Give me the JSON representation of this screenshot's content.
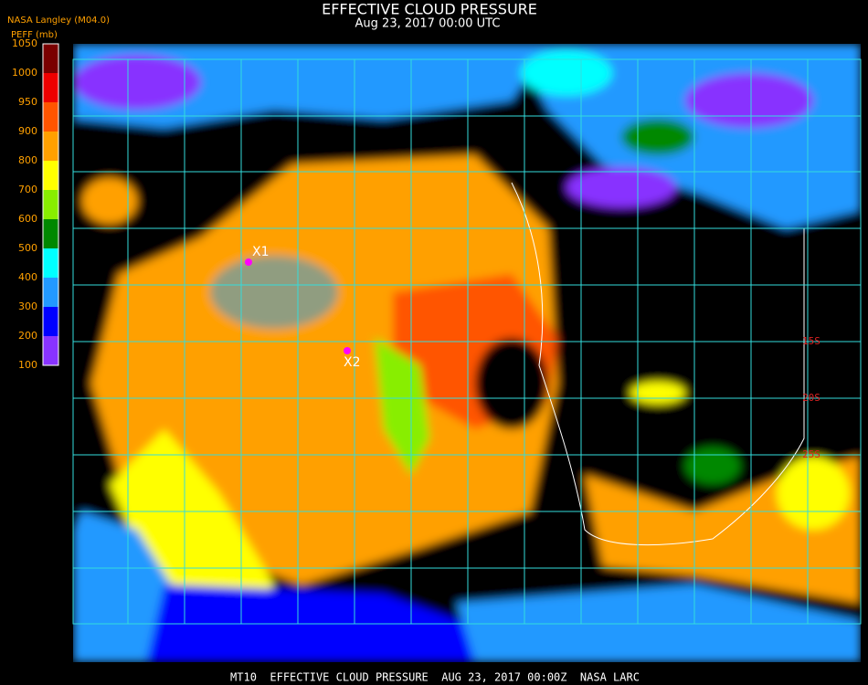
{
  "header": {
    "title": "EFFECTIVE CLOUD PRESSURE",
    "subtitle": "Aug 23, 2017 00:00 UTC",
    "source": "NASA Langley (M04.0)"
  },
  "legend": {
    "title": "PEFF (mb)",
    "ticks": [
      1050,
      1000,
      950,
      900,
      800,
      700,
      600,
      500,
      400,
      300,
      200,
      100
    ],
    "colors": [
      "#7a0000",
      "#ee0000",
      "#ff5500",
      "#ffa000",
      "#ffff00",
      "#88ee00",
      "#008800",
      "#00ffff",
      "#2299ff",
      "#0000ff",
      "#8833ff"
    ]
  },
  "markers": [
    {
      "label": "X1"
    },
    {
      "label": "X2"
    }
  ],
  "grid_labels": [
    "15S",
    "20S",
    "25S"
  ],
  "footer": {
    "caption": "MT10  EFFECTIVE CLOUD PRESSURE  AUG 23, 2017 00:00Z  NASA LARC"
  }
}
